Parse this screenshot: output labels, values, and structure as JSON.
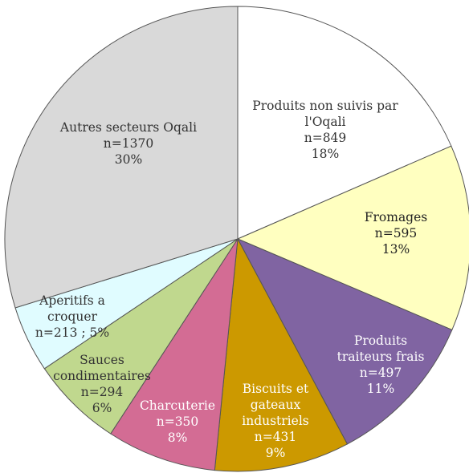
{
  "chart_data": {
    "type": "pie",
    "title": "",
    "start_angle_deg": 0,
    "direction": "clockwise",
    "slices": [
      {
        "label": "Produits non suivis par l'Oqali",
        "lines": [
          "Produits non suivis par",
          "l'Oqali",
          "n=849",
          "18%"
        ],
        "n": 849,
        "percent": 18,
        "color": "#FFFFFF",
        "text_color": "#333333"
      },
      {
        "label": "Fromages",
        "lines": [
          "Fromages",
          "n=595",
          "13%"
        ],
        "n": 595,
        "percent": 13,
        "color": "#FFFFC0",
        "text_color": "#222222"
      },
      {
        "label": "Produits traiteurs frais",
        "lines": [
          "Produits",
          "traiteurs frais",
          "n=497",
          "11%"
        ],
        "n": 497,
        "percent": 11,
        "color": "#8064A2",
        "text_color": "#FFFFFF"
      },
      {
        "label": "Biscuits et gateaux industriels",
        "lines": [
          "Biscuits et",
          "gateaux",
          "industriels",
          "n=431",
          "9%"
        ],
        "n": 431,
        "percent": 9,
        "color": "#CC9900",
        "text_color": "#FFFFFF"
      },
      {
        "label": "Charcuterie",
        "lines": [
          "Charcuterie",
          "n=350",
          "8%"
        ],
        "n": 350,
        "percent": 8,
        "color": "#D36C94",
        "text_color": "#FFFFFF"
      },
      {
        "label": "Sauces condimentaires",
        "lines": [
          "Sauces",
          "condimentaires",
          "n=294",
          "6%"
        ],
        "n": 294,
        "percent": 6,
        "color": "#C0D88E",
        "text_color": "#333333"
      },
      {
        "label": "Aperitifs a croquer",
        "lines": [
          "Aperitifs a",
          "croquer",
          "n=213 ; 5%"
        ],
        "n": 213,
        "percent": 5,
        "color": "#E0FCFF",
        "text_color": "#333333"
      },
      {
        "label": "Autres secteurs Oqali",
        "lines": [
          "Autres secteurs Oqali",
          "n=1370",
          "30%"
        ],
        "n": 1370,
        "percent": 30,
        "color": "#D9D9D9",
        "text_color": "#333333"
      }
    ]
  }
}
